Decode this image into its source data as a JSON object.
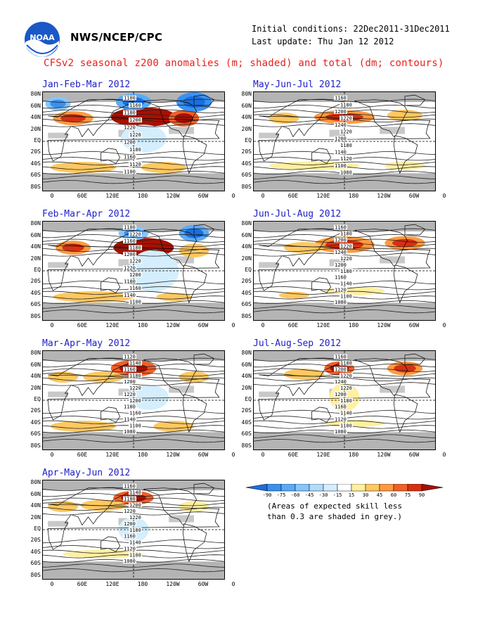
{
  "header": {
    "agency": "NWS/NCEP/CPC",
    "initial_conditions": "Initial conditions: 22Dec2011-31Dec2011",
    "last_update": "Last update: Thu Jan 12 2012",
    "title": "CFSv2 seasonal z200 anomalies (m; shaded) and total (dm; contours)"
  },
  "axes": {
    "y_ticks": [
      "80N",
      "60N",
      "40N",
      "20N",
      "EQ",
      "20S",
      "40S",
      "60S",
      "80S"
    ],
    "x_ticks": [
      "0",
      "60E",
      "120E",
      "180",
      "120W",
      "60W",
      "0"
    ]
  },
  "panels": [
    {
      "id": "jfm",
      "title": "Jan-Feb-Mar 2012",
      "contour_labels": [
        "1100",
        "1160",
        "1180",
        "1200",
        "1220",
        "1220",
        "1200",
        "1180",
        "1160",
        "1120",
        "1100"
      ],
      "blobs": [
        {
          "lon": 200,
          "lat": 42,
          "w": 130,
          "h": 14,
          "level": 90
        },
        {
          "lon": 280,
          "lat": 40,
          "w": 60,
          "h": 12,
          "level": 60
        },
        {
          "lon": 60,
          "lat": 40,
          "w": 80,
          "h": 10,
          "level": 45
        },
        {
          "lon": 180,
          "lat": 68,
          "w": 70,
          "h": 12,
          "level": -60
        },
        {
          "lon": 300,
          "lat": 68,
          "w": 70,
          "h": 14,
          "level": -75
        },
        {
          "lon": 30,
          "lat": 65,
          "w": 50,
          "h": 10,
          "level": -45
        },
        {
          "lon": 200,
          "lat": 5,
          "w": 90,
          "h": 20,
          "level": -15
        },
        {
          "lon": 80,
          "lat": -45,
          "w": 130,
          "h": 8,
          "level": 30
        },
        {
          "lon": 240,
          "lat": -45,
          "w": 90,
          "h": 8,
          "level": 30
        }
      ]
    },
    {
      "id": "mjj",
      "title": "May-Jun-Jul 2012",
      "contour_labels": [
        "1160",
        "1180",
        "1200",
        "1220",
        "1240",
        "1220",
        "1200",
        "1180",
        "1140",
        "1120",
        "1100",
        "1080"
      ],
      "blobs": [
        {
          "lon": 180,
          "lat": 42,
          "w": 120,
          "h": 10,
          "level": 45
        },
        {
          "lon": 300,
          "lat": 45,
          "w": 70,
          "h": 8,
          "level": 30
        },
        {
          "lon": 60,
          "lat": 40,
          "w": 60,
          "h": 8,
          "level": 30
        },
        {
          "lon": 120,
          "lat": -42,
          "w": 180,
          "h": 6,
          "level": 15
        },
        {
          "lon": 300,
          "lat": -42,
          "w": 80,
          "h": 6,
          "level": 15
        }
      ]
    },
    {
      "id": "fma",
      "title": "Feb-Mar-Apr 2012",
      "contour_labels": [
        "1100",
        "1220",
        "1160",
        "1180",
        "1200",
        "1220",
        "1220",
        "1200",
        "1180",
        "1160",
        "1140",
        "1100"
      ],
      "blobs": [
        {
          "lon": 200,
          "lat": 40,
          "w": 120,
          "h": 14,
          "level": 90
        },
        {
          "lon": 60,
          "lat": 40,
          "w": 70,
          "h": 10,
          "level": 45
        },
        {
          "lon": 300,
          "lat": 35,
          "w": 60,
          "h": 10,
          "level": 30
        },
        {
          "lon": 220,
          "lat": 0,
          "w": 100,
          "h": 30,
          "level": -15
        },
        {
          "lon": 180,
          "lat": 65,
          "w": 60,
          "h": 10,
          "level": -45
        },
        {
          "lon": 300,
          "lat": 65,
          "w": 60,
          "h": 12,
          "level": -60
        },
        {
          "lon": 100,
          "lat": -45,
          "w": 160,
          "h": 8,
          "level": 30
        },
        {
          "lon": 260,
          "lat": -45,
          "w": 70,
          "h": 6,
          "level": 30
        }
      ]
    },
    {
      "id": "jja",
      "title": "Jun-Jul-Aug 2012",
      "contour_labels": [
        "1160",
        "1180",
        "1200",
        "1220",
        "1240",
        "1220",
        "1200",
        "1180",
        "1160",
        "1140",
        "1120",
        "1100",
        "1080"
      ],
      "blobs": [
        {
          "lon": 180,
          "lat": 45,
          "w": 120,
          "h": 12,
          "level": 45
        },
        {
          "lon": 300,
          "lat": 48,
          "w": 80,
          "h": 10,
          "level": 45
        },
        {
          "lon": 100,
          "lat": 40,
          "w": 80,
          "h": 8,
          "level": 30
        },
        {
          "lon": 200,
          "lat": -35,
          "w": 120,
          "h": 6,
          "level": 15
        },
        {
          "lon": 80,
          "lat": -42,
          "w": 60,
          "h": 5,
          "level": 30
        }
      ]
    },
    {
      "id": "mam",
      "title": "Mar-Apr-May 2012",
      "contour_labels": [
        "1120",
        "1140",
        "1160",
        "1180",
        "1200",
        "1220",
        "1220",
        "1200",
        "1180",
        "1160",
        "1140",
        "1100",
        "1080"
      ],
      "blobs": [
        {
          "lon": 180,
          "lat": 55,
          "w": 90,
          "h": 12,
          "level": 60
        },
        {
          "lon": 120,
          "lat": 40,
          "w": 80,
          "h": 8,
          "level": 30
        },
        {
          "lon": 40,
          "lat": 40,
          "w": 60,
          "h": 8,
          "level": 30
        },
        {
          "lon": 300,
          "lat": 40,
          "w": 60,
          "h": 8,
          "level": 30
        },
        {
          "lon": 210,
          "lat": 5,
          "w": 80,
          "h": 18,
          "level": -15
        },
        {
          "lon": 80,
          "lat": -45,
          "w": 130,
          "h": 8,
          "level": 30
        },
        {
          "lon": 260,
          "lat": -45,
          "w": 80,
          "h": 8,
          "level": 30
        }
      ]
    },
    {
      "id": "jas",
      "title": "Jul-Aug-Sep 2012",
      "contour_labels": [
        "1160",
        "1180",
        "1200",
        "1220",
        "1240",
        "1220",
        "1200",
        "1180",
        "1160",
        "1140",
        "1120",
        "1100",
        "1080"
      ],
      "blobs": [
        {
          "lon": 170,
          "lat": 55,
          "w": 60,
          "h": 10,
          "level": 60
        },
        {
          "lon": 300,
          "lat": 55,
          "w": 70,
          "h": 10,
          "level": 45
        },
        {
          "lon": 100,
          "lat": 45,
          "w": 80,
          "h": 8,
          "level": 30
        },
        {
          "lon": 180,
          "lat": 5,
          "w": 60,
          "h": 20,
          "level": 15
        },
        {
          "lon": 200,
          "lat": -40,
          "w": 120,
          "h": 5,
          "level": 15
        }
      ]
    },
    {
      "id": "amj",
      "title": "Apr-May-Jun 2012",
      "contour_labels": [
        "1160",
        "1140",
        "1180",
        "1200",
        "1220",
        "1220",
        "1200",
        "1180",
        "1160",
        "1140",
        "1120",
        "1100",
        "1080"
      ],
      "blobs": [
        {
          "lon": 180,
          "lat": 55,
          "w": 80,
          "h": 10,
          "level": 60
        },
        {
          "lon": 120,
          "lat": 42,
          "w": 90,
          "h": 8,
          "level": 30
        },
        {
          "lon": 40,
          "lat": 40,
          "w": 60,
          "h": 8,
          "level": 30
        },
        {
          "lon": 300,
          "lat": 40,
          "w": 60,
          "h": 8,
          "level": 15
        },
        {
          "lon": 180,
          "lat": 0,
          "w": 60,
          "h": 18,
          "level": -15
        },
        {
          "lon": 120,
          "lat": -42,
          "w": 160,
          "h": 6,
          "level": 15
        }
      ]
    }
  ],
  "colorbar": {
    "labels": [
      "-90",
      "-75",
      "-60",
      "-45",
      "-30",
      "-15",
      "15",
      "30",
      "45",
      "60",
      "75",
      "90"
    ],
    "colors": [
      "#1a6ee0",
      "#3a90f0",
      "#5aaaf8",
      "#86c6fc",
      "#b2dcfc",
      "#d4eefe",
      "#ffffff",
      "#fff0a0",
      "#ffc860",
      "#ff9a40",
      "#f06028",
      "#d83010",
      "#a81000"
    ]
  },
  "note": {
    "line1": "(Areas of expected skill less",
    "line2": "than 0.3 are shaded in grey.)"
  }
}
